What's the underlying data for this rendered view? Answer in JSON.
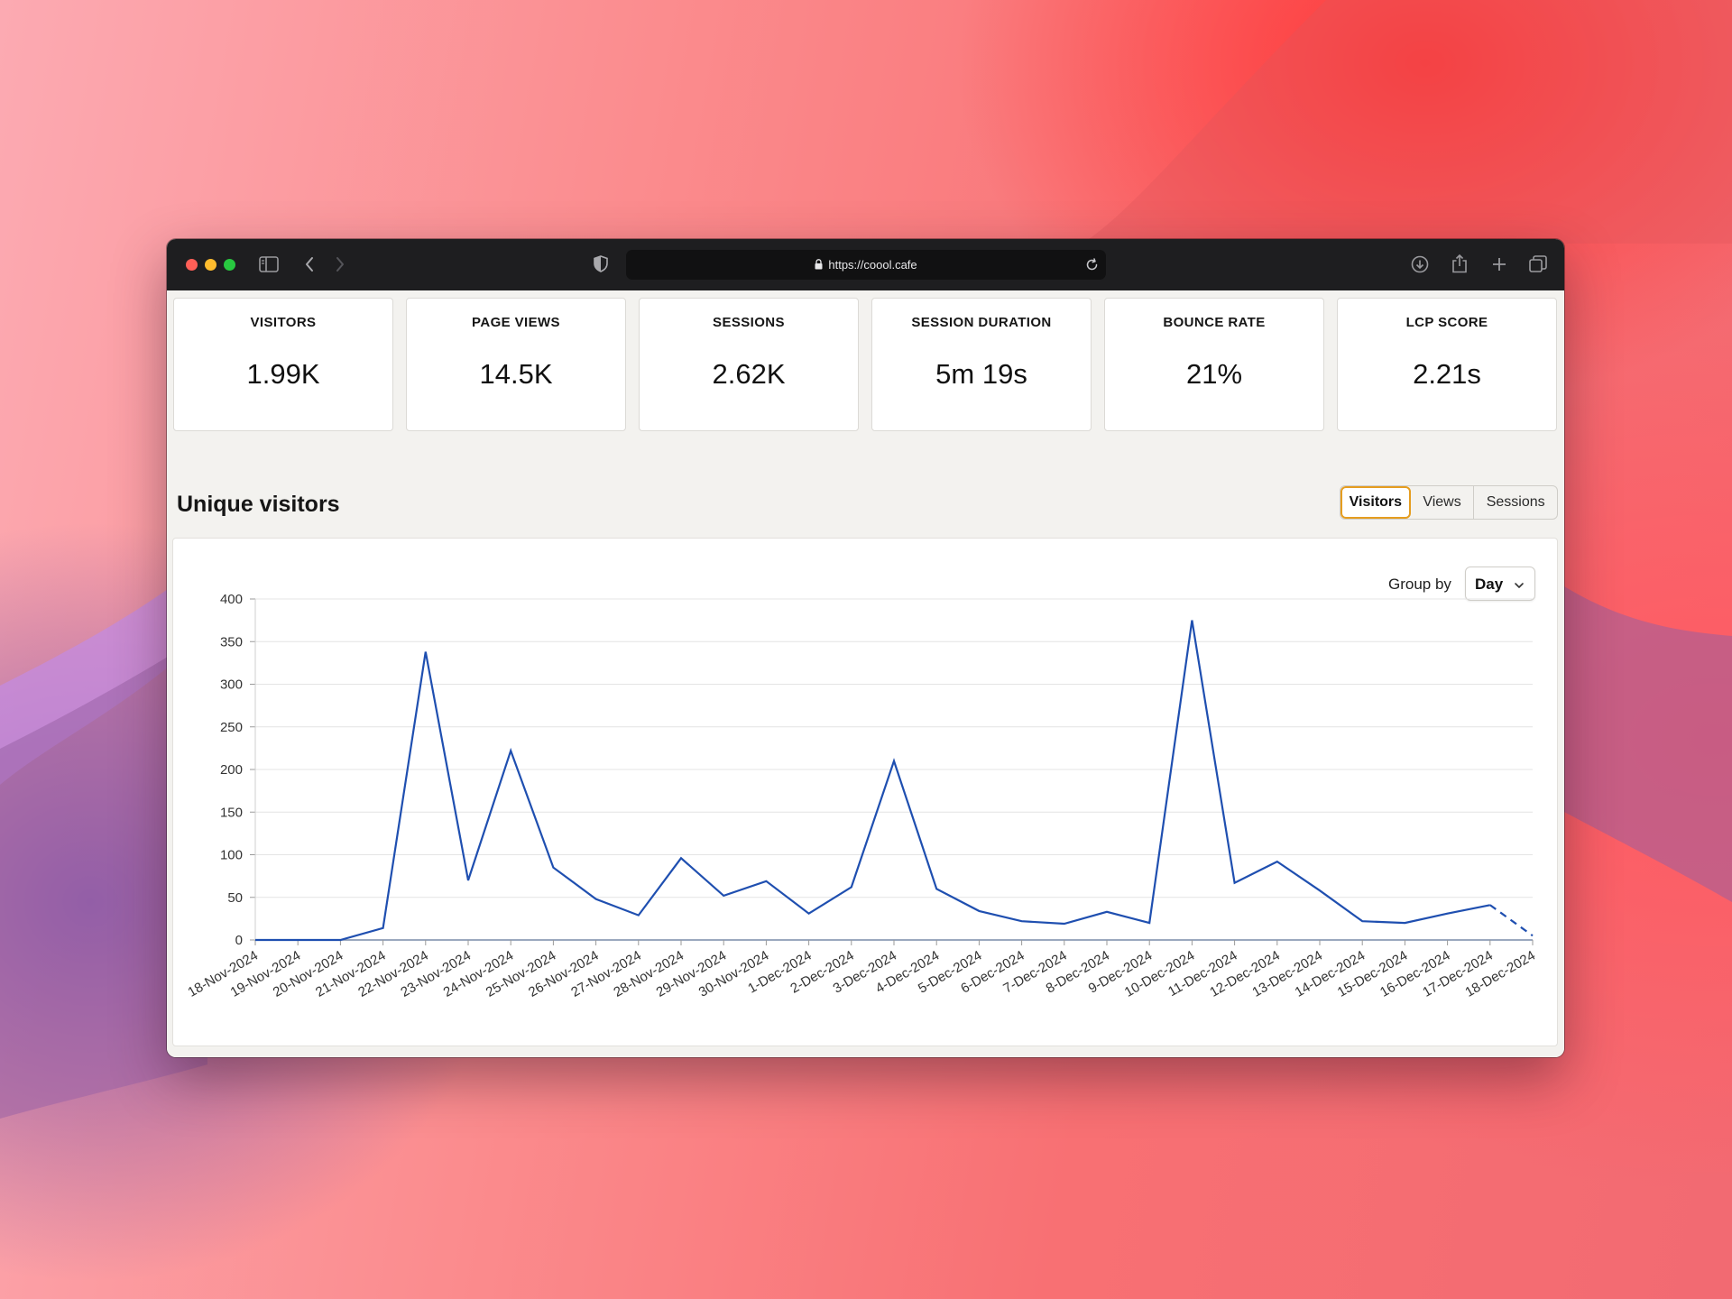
{
  "browser": {
    "url": "https://coool.cafe"
  },
  "stats": [
    {
      "label": "VISITORS",
      "value": "1.99K"
    },
    {
      "label": "PAGE VIEWS",
      "value": "14.5K"
    },
    {
      "label": "SESSIONS",
      "value": "2.62K"
    },
    {
      "label": "SESSION DURATION",
      "value": "5m 19s"
    },
    {
      "label": "BOUNCE RATE",
      "value": "21%"
    },
    {
      "label": "LCP SCORE",
      "value": "2.21s"
    }
  ],
  "section": {
    "title": "Unique visitors",
    "tabs": [
      {
        "label": "Visitors",
        "selected": true
      },
      {
        "label": "Views",
        "selected": false
      },
      {
        "label": "Sessions",
        "selected": false
      }
    ],
    "group_by": {
      "label": "Group by",
      "value": "Day"
    }
  },
  "colors": {
    "line": "#1f4fb0",
    "tab_accent": "#e59d1f",
    "grid": "#e4e4e4"
  },
  "chart_data": {
    "type": "line",
    "title": "",
    "xlabel": "",
    "ylabel": "",
    "ylim": [
      0,
      400
    ],
    "yticks": [
      0,
      50,
      100,
      150,
      200,
      250,
      300,
      350,
      400
    ],
    "grid": true,
    "categories": [
      "18-Nov-2024",
      "19-Nov-2024",
      "20-Nov-2024",
      "21-Nov-2024",
      "22-Nov-2024",
      "23-Nov-2024",
      "24-Nov-2024",
      "25-Nov-2024",
      "26-Nov-2024",
      "27-Nov-2024",
      "28-Nov-2024",
      "29-Nov-2024",
      "30-Nov-2024",
      "1-Dec-2024",
      "2-Dec-2024",
      "3-Dec-2024",
      "4-Dec-2024",
      "5-Dec-2024",
      "6-Dec-2024",
      "7-Dec-2024",
      "8-Dec-2024",
      "9-Dec-2024",
      "10-Dec-2024",
      "11-Dec-2024",
      "12-Dec-2024",
      "13-Dec-2024",
      "14-Dec-2024",
      "15-Dec-2024",
      "16-Dec-2024",
      "17-Dec-2024",
      "18-Dec-2024"
    ],
    "series": [
      {
        "values": [
          0,
          0,
          0,
          14,
          338,
          70,
          222,
          85,
          48,
          29,
          96,
          52,
          69,
          31,
          62,
          210,
          60,
          34,
          22,
          19,
          33,
          20,
          375,
          67,
          92,
          58,
          22,
          20,
          31,
          41,
          5
        ],
        "dashed_last_segment": true
      }
    ]
  }
}
